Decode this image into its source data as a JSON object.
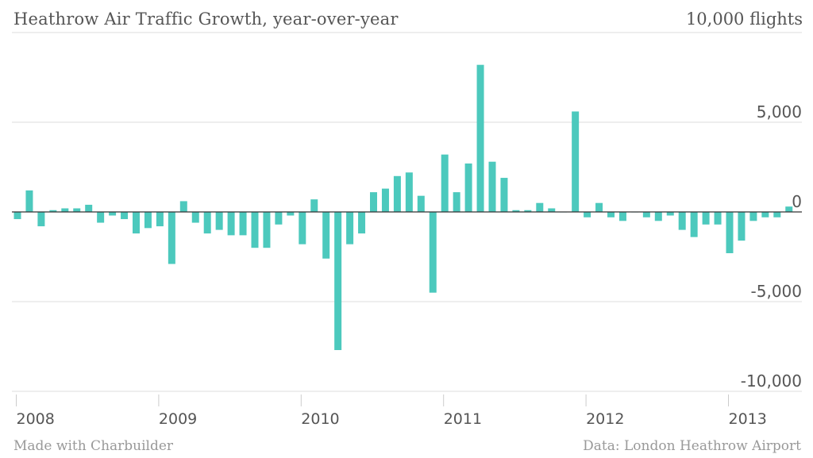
{
  "title": "Heathrow Air Traffic Growth, year-over-year",
  "unit_label": "10,000 flights",
  "footer": {
    "left": "Made with Charbuilder",
    "right": "Data: London Heathrow Airport"
  },
  "chart_data": {
    "type": "bar",
    "title": "Heathrow Air Traffic Growth, year-over-year",
    "ylabel": "10,000 flights",
    "ylim": [
      -10000,
      10000
    ],
    "yticks": [
      {
        "value": 10000,
        "label": "10,000 flights"
      },
      {
        "value": 5000,
        "label": "5,000"
      },
      {
        "value": 0,
        "label": "0"
      },
      {
        "value": -5000,
        "label": "-5,000"
      },
      {
        "value": -10000,
        "label": "-10,000"
      }
    ],
    "xticks": [
      "2008",
      "2009",
      "2010",
      "2011",
      "2012",
      "2013"
    ],
    "bar_color": "#4cc9bd",
    "start": "2008-01",
    "frequency": "monthly",
    "values": [
      -400,
      1200,
      -800,
      100,
      200,
      200,
      400,
      -600,
      -200,
      -400,
      -1200,
      -900,
      -800,
      -2900,
      600,
      -600,
      -1200,
      -1000,
      -1300,
      -1300,
      -2000,
      -2000,
      -700,
      -200,
      -1800,
      700,
      -2600,
      -7700,
      -1800,
      -1200,
      1100,
      1300,
      2000,
      2200,
      900,
      -4500,
      3200,
      1100,
      2700,
      8200,
      2800,
      1900,
      100,
      100,
      500,
      200,
      0,
      5600,
      -300,
      500,
      -300,
      -500,
      0,
      -300,
      -500,
      -200,
      -1000,
      -1400,
      -700,
      -700,
      -2300,
      -1600,
      -500,
      -300,
      -300,
      300
    ],
    "grid": true,
    "legend": "none"
  }
}
